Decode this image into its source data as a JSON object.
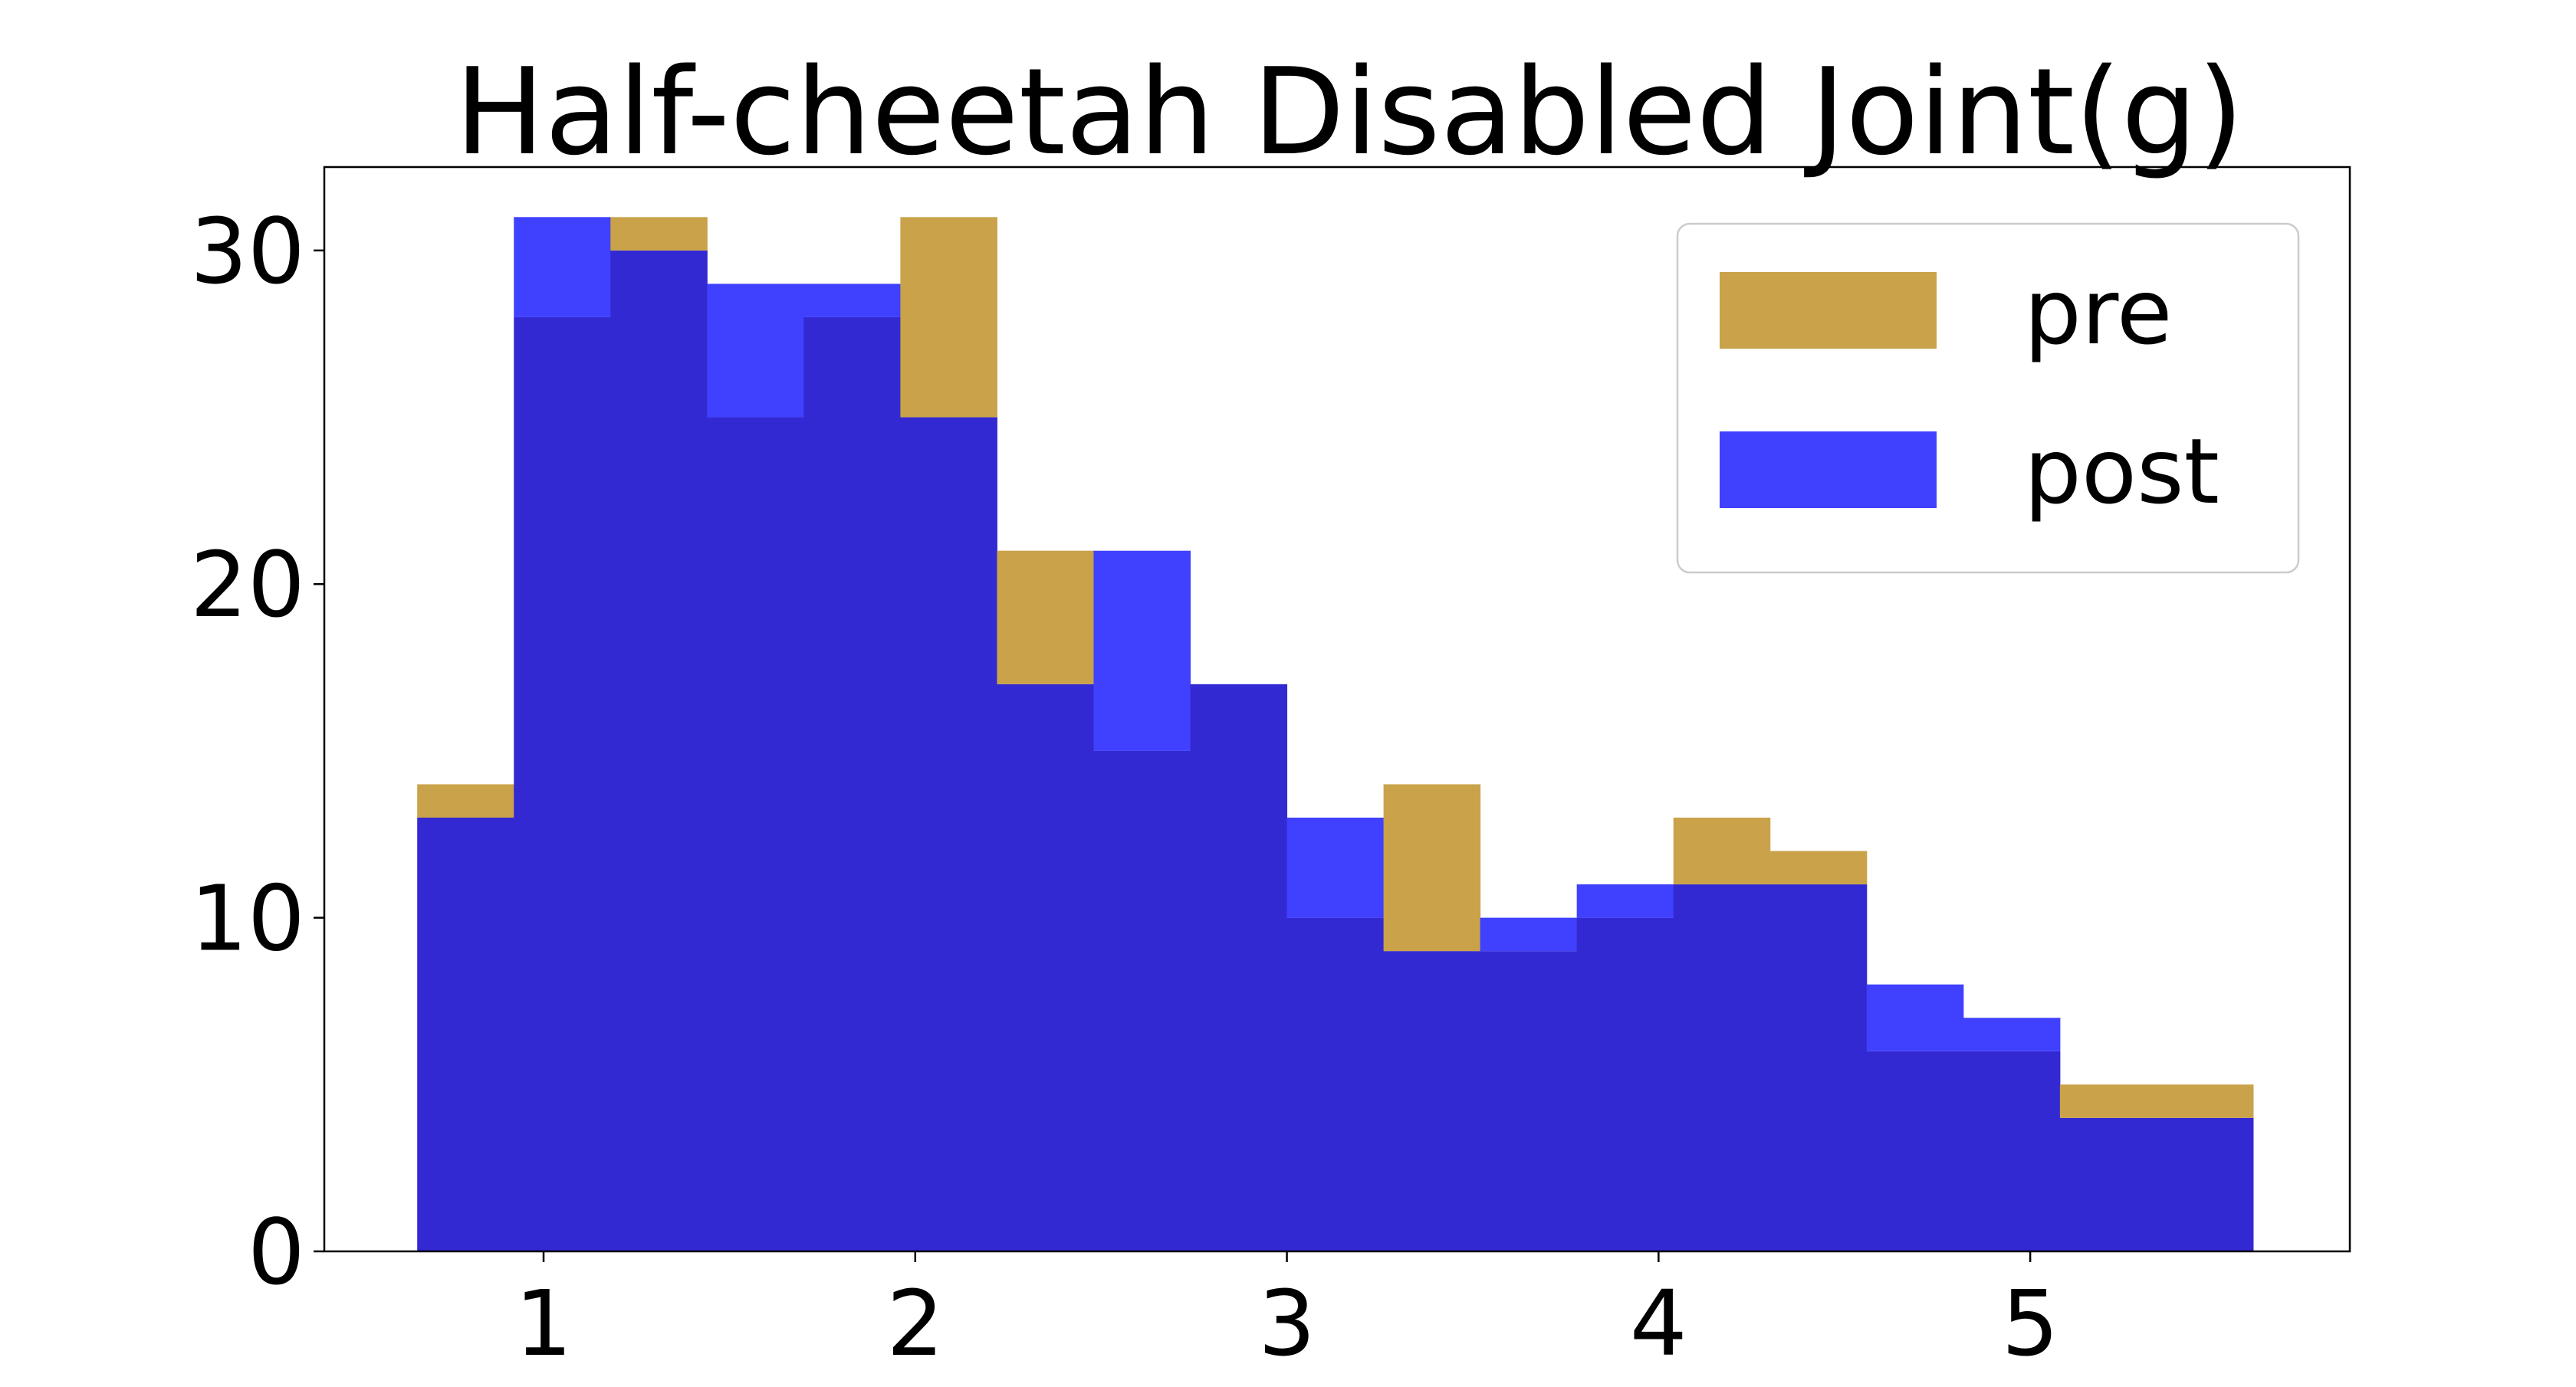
{
  "chart_data": {
    "type": "bar",
    "title": "Half-cheetah Disabled Joint(g)",
    "xlabel": "",
    "ylabel": "",
    "xlim": [
      0.41,
      5.86
    ],
    "ylim": [
      0,
      32.5
    ],
    "xticks": [
      1,
      2,
      3,
      4,
      5
    ],
    "yticks": [
      0,
      10,
      20,
      30
    ],
    "bin_edges": [
      0.66,
      0.92,
      1.18,
      1.44,
      1.7,
      1.96,
      2.22,
      2.48,
      2.74,
      3.0,
      3.26,
      3.52,
      3.78,
      4.04,
      4.3,
      4.56,
      4.82,
      5.08,
      5.34,
      5.6
    ],
    "series": [
      {
        "name": "pre",
        "color": "#c9a24a",
        "values": [
          14,
          28,
          31,
          25,
          28,
          31,
          21,
          15,
          17,
          10,
          14,
          9,
          10,
          13,
          12,
          6,
          6,
          5,
          5
        ]
      },
      {
        "name": "post",
        "color": "#4040ff",
        "values": [
          13,
          31,
          30,
          29,
          29,
          25,
          17,
          21,
          17,
          13,
          9,
          10,
          11,
          11,
          11,
          8,
          7,
          4,
          4
        ]
      }
    ],
    "overlap_color": "#3329d3",
    "legend": {
      "placement": "upper right"
    },
    "grid": false
  }
}
